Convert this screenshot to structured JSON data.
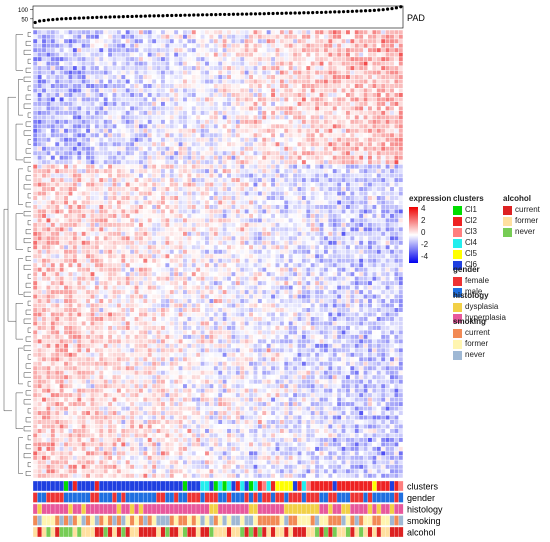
{
  "chart_data": {
    "type": "heatmap",
    "title": "",
    "top_annotation": {
      "label": "PAD",
      "axis_ticks": [
        50,
        100
      ],
      "ylim": [
        0,
        120
      ],
      "values": [
        30,
        38,
        41,
        44,
        46,
        48,
        50,
        51,
        52,
        53,
        54,
        55,
        56,
        57,
        58,
        59,
        59,
        60,
        61,
        61,
        62,
        63,
        63,
        64,
        64,
        65,
        66,
        66,
        67,
        67,
        68,
        68,
        69,
        69,
        70,
        70,
        71,
        71,
        72,
        72,
        73,
        73,
        74,
        74,
        74,
        75,
        75,
        76,
        76,
        77,
        77,
        78,
        78,
        79,
        79,
        80,
        80,
        81,
        81,
        82,
        82,
        83,
        83,
        84,
        85,
        85,
        86,
        87,
        88,
        88,
        89,
        90,
        91,
        92,
        93,
        94,
        95,
        96,
        98,
        100,
        103,
        106,
        110,
        116
      ]
    },
    "color_scale": {
      "name": "expression",
      "ticks": [
        4,
        2,
        0,
        -2,
        -4
      ],
      "colors": [
        "#0000ee",
        "#ffffff",
        "#ee0000"
      ]
    },
    "annotation_tracks": [
      "clusters",
      "gender",
      "histology",
      "smoking",
      "alcohol"
    ],
    "legends": [
      {
        "key": "clusters",
        "title": "clusters",
        "entries": [
          {
            "label": "Cl1",
            "color": "#00dd00"
          },
          {
            "label": "Cl2",
            "color": "#ee2222"
          },
          {
            "label": "Cl3",
            "color": "#ff7f7f"
          },
          {
            "label": "Cl4",
            "color": "#22eeee"
          },
          {
            "label": "Cl5",
            "color": "#ffff00"
          },
          {
            "label": "Cl6",
            "color": "#1f3fe0"
          }
        ]
      },
      {
        "key": "alcohol",
        "title": "alcohol",
        "entries": [
          {
            "label": "current",
            "color": "#dd2222"
          },
          {
            "label": "former",
            "color": "#ffe0a0"
          },
          {
            "label": "never",
            "color": "#77cc55"
          }
        ]
      },
      {
        "key": "gender",
        "title": "gender",
        "entries": [
          {
            "label": "female",
            "color": "#ee3333"
          },
          {
            "label": "male",
            "color": "#1f6fe0"
          }
        ]
      },
      {
        "key": "histology",
        "title": "histology",
        "entries": [
          {
            "label": "dysplasia",
            "color": "#f2d046"
          },
          {
            "label": "hyperplasia",
            "color": "#e8589c"
          }
        ]
      },
      {
        "key": "smoking",
        "title": "smoking",
        "entries": [
          {
            "label": "current",
            "color": "#f28a55"
          },
          {
            "label": "former",
            "color": "#fff5b0"
          },
          {
            "label": "never",
            "color": "#9fb8d4"
          }
        ]
      }
    ]
  }
}
